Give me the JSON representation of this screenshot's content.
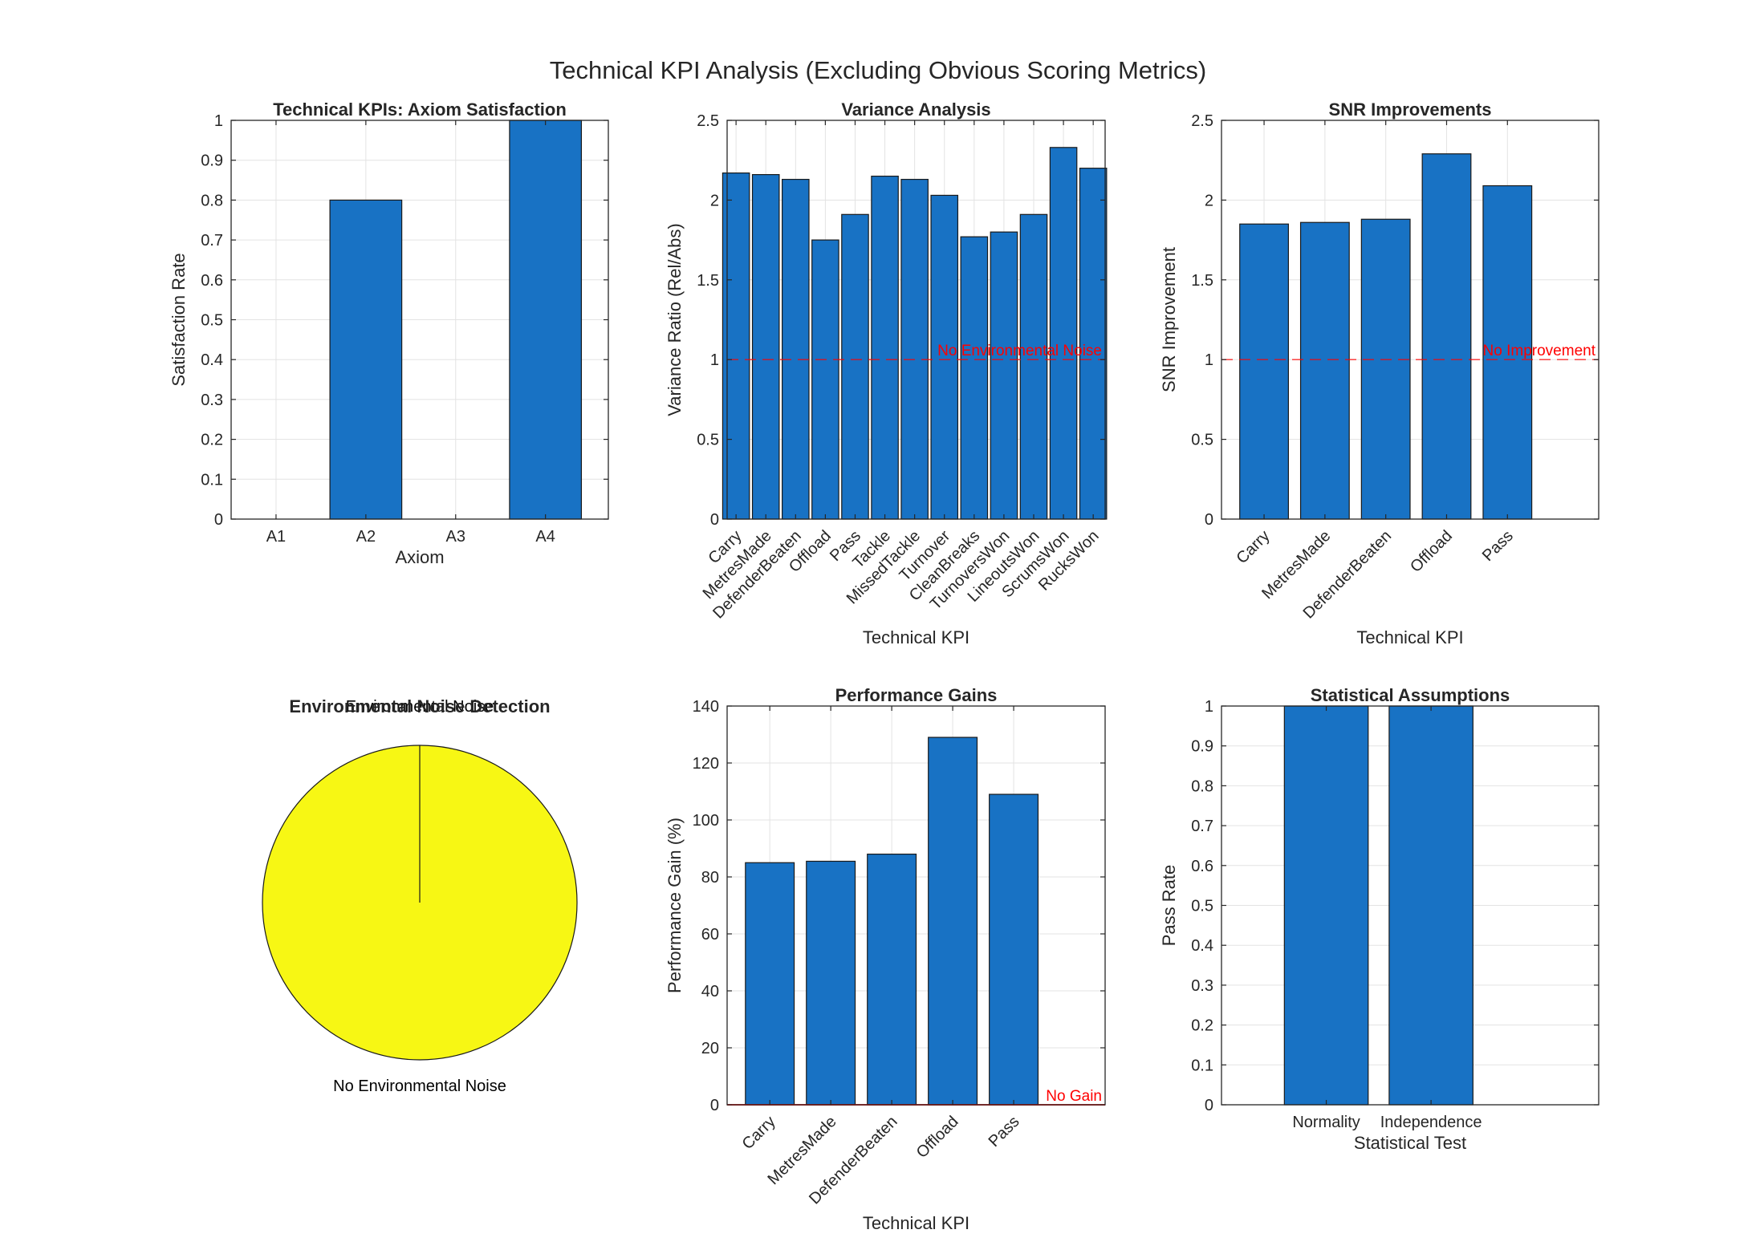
{
  "figure": {
    "suptitle": "Technical KPI Analysis (Excluding Obvious Scoring Metrics)"
  },
  "colors": {
    "bar": "#1872C4",
    "edge": "#1a1a1a",
    "ref_line": "#FF0000",
    "pie_fill": "#F7F714",
    "axis": "#262626",
    "grid": "#E3E3E3"
  },
  "chart_data": [
    {
      "id": "axiom",
      "type": "bar",
      "title": "Technical KPIs: Axiom Satisfaction",
      "xlabel": "Axiom",
      "ylabel": "Satisfaction Rate",
      "categories": [
        "A1",
        "A2",
        "A3",
        "A4"
      ],
      "values": [
        0,
        0.8,
        0,
        1
      ],
      "ylim": [
        0,
        1
      ],
      "yticks": [
        "0",
        "0.1",
        "0.2",
        "0.3",
        "0.4",
        "0.5",
        "0.6",
        "0.7",
        "0.8",
        "0.9",
        "1"
      ],
      "grid": true
    },
    {
      "id": "variance",
      "type": "bar",
      "title": "Variance Analysis",
      "xlabel": "Technical KPI",
      "ylabel": "Variance Ratio (Rel/Abs)",
      "categories": [
        "Carry",
        "MetresMade",
        "DefenderBeaten",
        "Offload",
        "Pass",
        "Tackle",
        "MissedTackle",
        "Turnover",
        "CleanBreaks",
        "TurnoversWon",
        "LineoutsWon",
        "ScrumsWon",
        "RucksWon"
      ],
      "values": [
        2.17,
        2.16,
        2.13,
        1.75,
        1.91,
        2.15,
        2.13,
        2.03,
        1.77,
        1.8,
        1.91,
        2.33,
        2.2
      ],
      "ylim": [
        0,
        2.5
      ],
      "yticks": [
        "0",
        "0.5",
        "1",
        "1.5",
        "2",
        "2.5"
      ],
      "reference_line": {
        "y": 1,
        "label": "No Environmental Noise"
      },
      "grid": true
    },
    {
      "id": "snr",
      "type": "bar",
      "title": "SNR Improvements",
      "xlabel": "Technical KPI",
      "ylabel": "SNR Improvement",
      "categories": [
        "Carry",
        "MetresMade",
        "DefenderBeaten",
        "Offload",
        "Pass"
      ],
      "values": [
        1.85,
        1.86,
        1.88,
        2.29,
        2.09
      ],
      "ylim": [
        0,
        2.5
      ],
      "yticks": [
        "0",
        "0.5",
        "1",
        "1.5",
        "2",
        "2.5"
      ],
      "reference_line": {
        "y": 1,
        "label": "No Improvement"
      },
      "grid": true
    },
    {
      "id": "noise",
      "type": "pie",
      "title": "Environmental Noise Detection",
      "labels": [
        "Environmental Noise",
        "No Environmental Noise"
      ],
      "values": [
        0,
        1
      ]
    },
    {
      "id": "gains",
      "type": "bar",
      "title": "Performance Gains",
      "xlabel": "Technical KPI",
      "ylabel": "Performance Gain (%)",
      "categories": [
        "Carry",
        "MetresMade",
        "DefenderBeaten",
        "Offload",
        "Pass"
      ],
      "values": [
        85,
        85.5,
        88,
        129,
        109
      ],
      "ylim": [
        0,
        140
      ],
      "yticks": [
        "0",
        "20",
        "40",
        "60",
        "80",
        "100",
        "120",
        "140"
      ],
      "reference_line": {
        "y": 0,
        "label": "No Gain"
      },
      "grid": true
    },
    {
      "id": "stats",
      "type": "bar",
      "title": "Statistical Assumptions",
      "xlabel": "Statistical Test",
      "ylabel": "Pass Rate",
      "categories": [
        "Normality",
        "Independence"
      ],
      "values": [
        1,
        1
      ],
      "ylim": [
        0,
        1
      ],
      "yticks": [
        "0",
        "0.1",
        "0.2",
        "0.3",
        "0.4",
        "0.5",
        "0.6",
        "0.7",
        "0.8",
        "0.9",
        "1"
      ],
      "grid": true
    }
  ]
}
